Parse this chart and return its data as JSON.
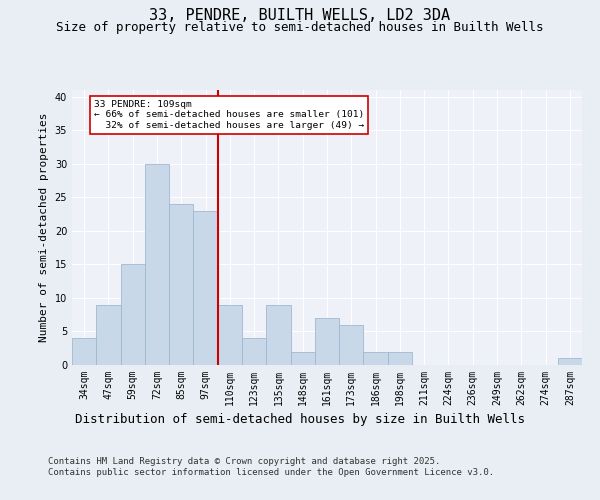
{
  "title": "33, PENDRE, BUILTH WELLS, LD2 3DA",
  "subtitle": "Size of property relative to semi-detached houses in Builth Wells",
  "xlabel": "Distribution of semi-detached houses by size in Builth Wells",
  "ylabel": "Number of semi-detached properties",
  "categories": [
    "34sqm",
    "47sqm",
    "59sqm",
    "72sqm",
    "85sqm",
    "97sqm",
    "110sqm",
    "123sqm",
    "135sqm",
    "148sqm",
    "161sqm",
    "173sqm",
    "186sqm",
    "198sqm",
    "211sqm",
    "224sqm",
    "236sqm",
    "249sqm",
    "262sqm",
    "274sqm",
    "287sqm"
  ],
  "values": [
    4,
    9,
    15,
    30,
    24,
    23,
    9,
    4,
    9,
    2,
    7,
    6,
    2,
    2,
    0,
    0,
    0,
    0,
    0,
    0,
    1
  ],
  "bar_color": "#c8d8e8",
  "bar_edgecolor": "#a0b8d0",
  "vline_x_index": 6,
  "vline_color": "#cc0000",
  "annotation_text": "33 PENDRE: 109sqm\n← 66% of semi-detached houses are smaller (101)\n  32% of semi-detached houses are larger (49) →",
  "annotation_box_color": "#ffffff",
  "annotation_box_edgecolor": "#cc0000",
  "ylim": [
    0,
    41
  ],
  "yticks": [
    0,
    5,
    10,
    15,
    20,
    25,
    30,
    35,
    40
  ],
  "background_color": "#e8eef4",
  "plot_background_color": "#eef2f8",
  "footer": "Contains HM Land Registry data © Crown copyright and database right 2025.\nContains public sector information licensed under the Open Government Licence v3.0.",
  "title_fontsize": 11,
  "subtitle_fontsize": 9,
  "xlabel_fontsize": 9,
  "ylabel_fontsize": 8,
  "tick_fontsize": 7,
  "footer_fontsize": 6.5
}
